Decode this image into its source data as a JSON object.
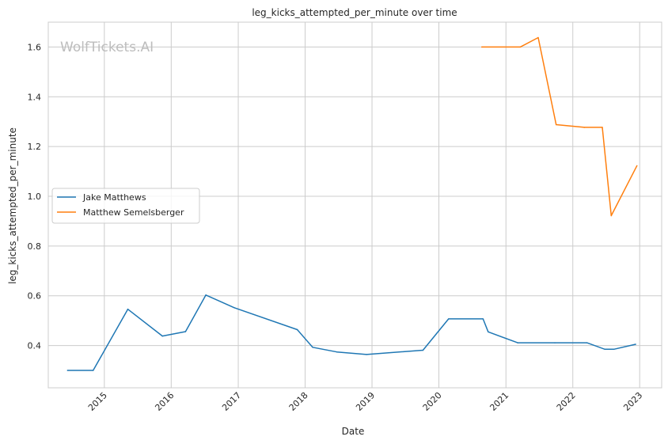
{
  "chart_data": {
    "type": "line",
    "title": "leg_kicks_attempted_per_minute over time",
    "xlabel": "Date",
    "ylabel": "leg_kicks_attempted_per_minute",
    "watermark": "WolfTickets.AI",
    "xlim": [
      "2014-03-01",
      "2023-05-01"
    ],
    "ylim": [
      0.23,
      1.7
    ],
    "x_ticks": [
      "2015",
      "2016",
      "2017",
      "2018",
      "2019",
      "2020",
      "2021",
      "2022",
      "2023"
    ],
    "y_ticks": [
      "0.4",
      "0.6",
      "0.8",
      "1.0",
      "1.2",
      "1.4",
      "1.6"
    ],
    "grid": true,
    "legend_position": "center-left",
    "series": [
      {
        "name": "Jake Matthews",
        "color": "#1f77b4",
        "points": [
          {
            "x": "2014-06-14",
            "y": 0.3
          },
          {
            "x": "2014-11-01",
            "y": 0.3
          },
          {
            "x": "2015-05-09",
            "y": 0.546
          },
          {
            "x": "2015-11-14",
            "y": 0.438
          },
          {
            "x": "2016-03-19",
            "y": 0.456
          },
          {
            "x": "2016-07-08",
            "y": 0.603
          },
          {
            "x": "2016-12-10",
            "y": 0.552
          },
          {
            "x": "2017-11-19",
            "y": 0.464
          },
          {
            "x": "2018-02-11",
            "y": 0.393
          },
          {
            "x": "2018-06-23",
            "y": 0.374
          },
          {
            "x": "2018-12-02",
            "y": 0.364
          },
          {
            "x": "2019-10-06",
            "y": 0.381
          },
          {
            "x": "2020-02-23",
            "y": 0.507
          },
          {
            "x": "2020-08-29",
            "y": 0.507
          },
          {
            "x": "2020-09-26",
            "y": 0.455
          },
          {
            "x": "2021-03-06",
            "y": 0.411
          },
          {
            "x": "2021-09-25",
            "y": 0.411
          },
          {
            "x": "2022-03-19",
            "y": 0.411
          },
          {
            "x": "2022-06-25",
            "y": 0.385
          },
          {
            "x": "2022-08-13",
            "y": 0.385
          },
          {
            "x": "2022-12-10",
            "y": 0.405
          }
        ]
      },
      {
        "name": "Matthew Semelsberger",
        "color": "#ff7f0e",
        "points": [
          {
            "x": "2020-08-22",
            "y": 1.6
          },
          {
            "x": "2021-03-20",
            "y": 1.6
          },
          {
            "x": "2021-06-26",
            "y": 1.638
          },
          {
            "x": "2021-10-02",
            "y": 1.288
          },
          {
            "x": "2022-03-05",
            "y": 1.277
          },
          {
            "x": "2022-06-11",
            "y": 1.277
          },
          {
            "x": "2022-07-30",
            "y": 0.922
          },
          {
            "x": "2022-12-17",
            "y": 1.123
          }
        ]
      }
    ]
  }
}
